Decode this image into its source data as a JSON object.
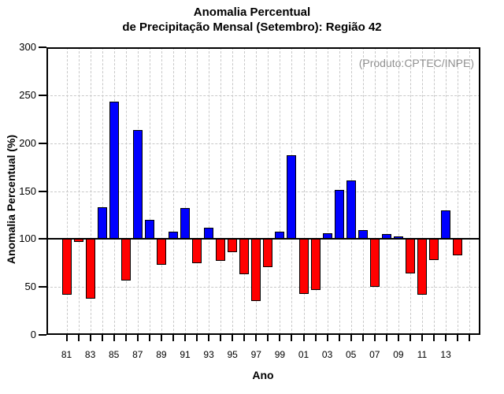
{
  "title": {
    "line1": "Anomalia Percentual",
    "line2": "de Precipitação Mensal (Setembro): Região 42"
  },
  "annotation": "(Produto:CPTEC/INPE)",
  "colors": {
    "positive_bar": "#0000ff",
    "negative_bar": "#ff0000",
    "grid": "#c9c9c9",
    "annotation_text": "#919191",
    "axis": "#000000"
  },
  "chart_data": {
    "type": "bar",
    "title": "Anomalia Percentual de Precipitação Mensal (Setembro): Região 42",
    "xlabel": "Ano",
    "ylabel": "Anomalia Percentual (%)",
    "ylim": [
      0,
      300
    ],
    "yticks": [
      0,
      50,
      100,
      150,
      200,
      250,
      300
    ],
    "baseline": 100,
    "grid": true,
    "legend_position": "none",
    "categories": [
      "81",
      "82",
      "83",
      "84",
      "85",
      "86",
      "87",
      "88",
      "89",
      "90",
      "91",
      "92",
      "93",
      "94",
      "95",
      "96",
      "97",
      "98",
      "99",
      "00",
      "01",
      "02",
      "03",
      "04",
      "05",
      "06",
      "07",
      "08",
      "09",
      "10",
      "11",
      "12",
      "13",
      "14"
    ],
    "x_tick_labels": [
      "81",
      "83",
      "85",
      "87",
      "89",
      "91",
      "93",
      "95",
      "97",
      "99",
      "01",
      "03",
      "05",
      "07",
      "09",
      "11",
      "13"
    ],
    "values": [
      42,
      97,
      38,
      133,
      243,
      57,
      214,
      120,
      73,
      108,
      132,
      75,
      112,
      77,
      86,
      63,
      35,
      71,
      108,
      187,
      43,
      47,
      106,
      151,
      161,
      109,
      50,
      105,
      103,
      64,
      42,
      78,
      130,
      83
    ]
  }
}
